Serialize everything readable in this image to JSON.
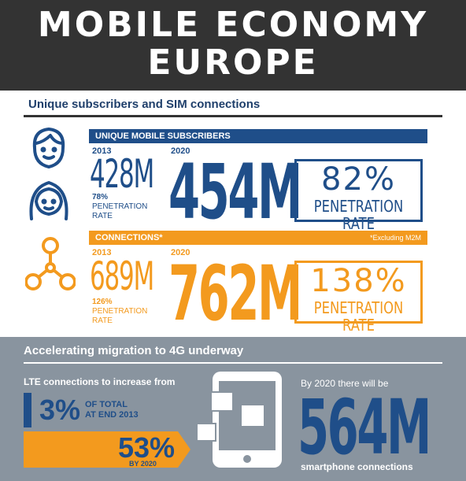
{
  "header": {
    "title_line1": "MOBILE ECONOMY",
    "title_line2": "EUROPE"
  },
  "subscribers_section": {
    "title": "Unique subscribers and SIM connections",
    "unique": {
      "bar_label": "UNIQUE MOBILE SUBSCRIBERS",
      "year_2013": "2013",
      "value_2013": "428M",
      "pen_2013_pct": "78%",
      "pen_2013_lbl1": "PENETRATION",
      "pen_2013_lbl2": "RATE",
      "year_2020": "2020",
      "value_2020": "454M",
      "box_pct": "82%",
      "box_label": "PENETRATION RATE"
    },
    "connections": {
      "bar_label": "CONNECTIONS*",
      "note": "*Excluding M2M",
      "year_2013": "2013",
      "value_2013": "689M",
      "pen_2013_pct": "126%",
      "pen_2013_lbl1": "PENETRATION",
      "pen_2013_lbl2": "RATE",
      "year_2020": "2020",
      "value_2020": "762M",
      "box_pct": "138%",
      "box_label": "PENETRATION RATE"
    }
  },
  "migration_section": {
    "title": "Accelerating migration to 4G underway",
    "lte_label": "LTE connections to increase from",
    "lte_2013_value": "3%",
    "lte_2013_lbl1": "OF TOTAL",
    "lte_2013_lbl2": "AT END 2013",
    "lte_2020_value": "53%",
    "lte_2020_lbl": "BY 2020",
    "smart_intro": "By 2020 there will be",
    "smart_value": "564M",
    "smart_label": "smartphone connections"
  },
  "colors": {
    "header_bg": "#333333",
    "blue": "#1f4e89",
    "orange": "#f39a1e",
    "grey_section": "#89949f"
  }
}
